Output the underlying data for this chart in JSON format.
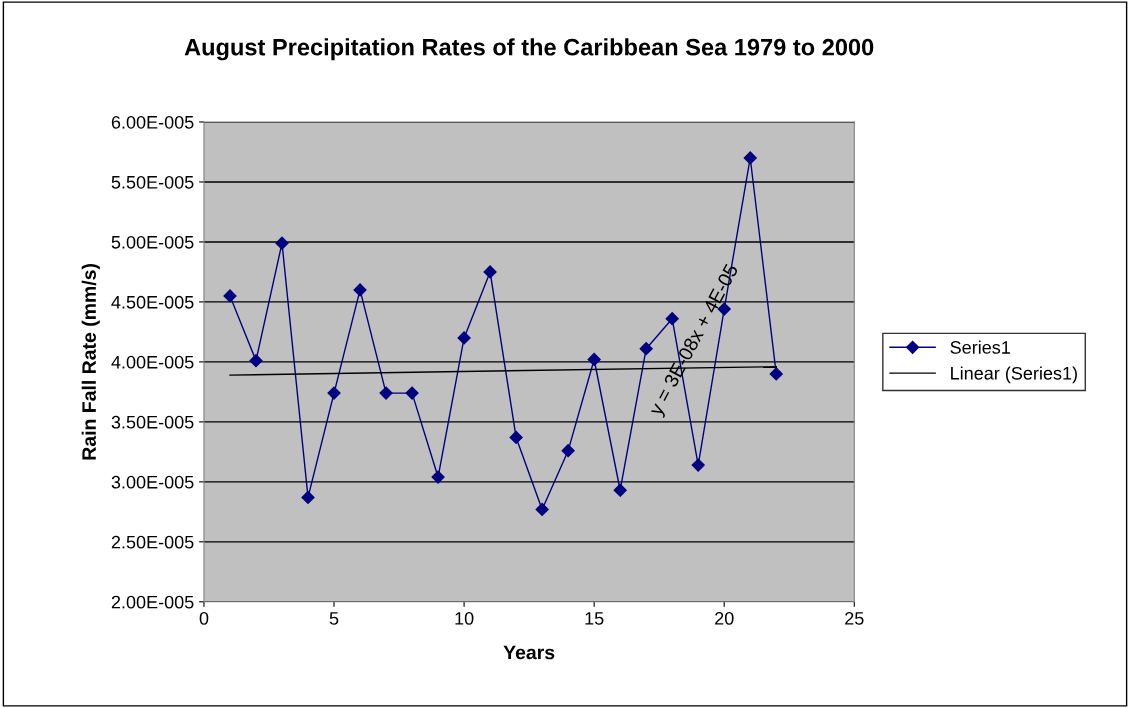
{
  "chart_data": {
    "type": "line",
    "title": "August Precipitation Rates of the Caribbean Sea 1979 to 2000",
    "xlabel": "Years",
    "ylabel": "Rain Fall Rate (mm/s)",
    "x": [
      1,
      2,
      3,
      4,
      5,
      6,
      7,
      8,
      9,
      10,
      11,
      12,
      13,
      14,
      15,
      16,
      17,
      18,
      19,
      20,
      21,
      22
    ],
    "series": [
      {
        "name": "Series1",
        "color": "#000080",
        "marker": "diamond",
        "values": [
          4.55e-05,
          4.01e-05,
          4.99e-05,
          2.87e-05,
          3.74e-05,
          4.6e-05,
          3.74e-05,
          3.74e-05,
          3.04e-05,
          4.2e-05,
          4.75e-05,
          3.37e-05,
          2.77e-05,
          3.26e-05,
          4.02e-05,
          2.93e-05,
          4.11e-05,
          4.36e-05,
          3.14e-05,
          4.44e-05,
          5.7e-05,
          3.9e-05
        ]
      },
      {
        "name": "Linear (Series1)",
        "color": "#000000",
        "marker": "none",
        "x": [
          1,
          22
        ],
        "values": [
          3.89e-05,
          3.96e-05
        ]
      }
    ],
    "annotations": [
      "y = 3E-08x + 4E-05"
    ],
    "xlim": [
      0,
      25
    ],
    "xticks": [
      0,
      5,
      10,
      15,
      20,
      25
    ],
    "ylim": [
      2e-05,
      6e-05
    ],
    "yticks": [
      {
        "value": 2e-05,
        "label": "2.00E-005"
      },
      {
        "value": 2.5e-05,
        "label": "2.50E-005"
      },
      {
        "value": 3e-05,
        "label": "3.00E-005"
      },
      {
        "value": 3.5e-05,
        "label": "3.50E-005"
      },
      {
        "value": 4e-05,
        "label": "4.00E-005"
      },
      {
        "value": 4.5e-05,
        "label": "4.50E-005"
      },
      {
        "value": 5e-05,
        "label": "5.00E-005"
      },
      {
        "value": 5.5e-05,
        "label": "5.50E-005"
      },
      {
        "value": 6e-05,
        "label": "6.00E-005"
      }
    ],
    "grid": "y",
    "legend": "right",
    "line_style": "solid"
  }
}
